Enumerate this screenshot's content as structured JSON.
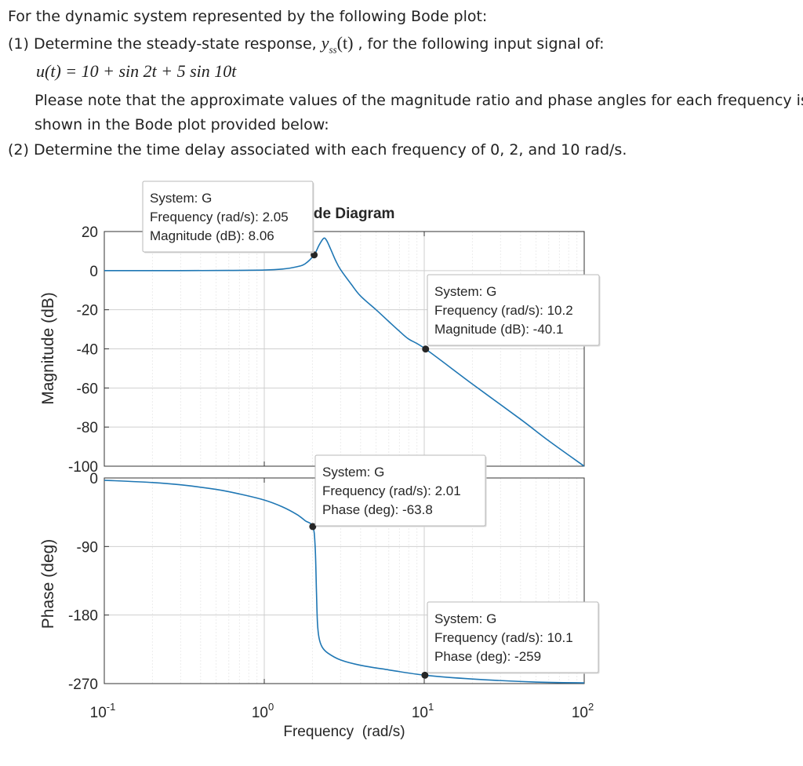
{
  "question": {
    "intro": "For the dynamic system represented by the following Bode plot:",
    "part1_prefix": "(1) Determine the steady-state response,",
    "part1_var": "y",
    "part1_sub": "ss",
    "part1_arg": "(t)",
    "part1_suffix": ", for the following input signal of:",
    "input_signal": "u(t) = 10 + sin 2t + 5 sin 10t",
    "note_line1": "Please note that the approximate values of the magnitude ratio and phase angles for each frequency is",
    "note_line2": "shown in the Bode plot provided below:",
    "part2": "(2) Determine the time delay associated with each frequency of 0, 2, and 10 rad/s."
  },
  "chart_data": {
    "type": "line",
    "title": "Bode Diagram",
    "xlabel": "Frequency  (rad/s)",
    "x_scale": "log",
    "xlim": [
      0.1,
      100
    ],
    "x_ticks": [
      {
        "value": 0.1,
        "base": "10",
        "exp": "-1"
      },
      {
        "value": 1,
        "base": "10",
        "exp": "0"
      },
      {
        "value": 10,
        "base": "10",
        "exp": "1"
      },
      {
        "value": 100,
        "base": "10",
        "exp": "2"
      }
    ],
    "grid": true,
    "color": "#1f77b4",
    "magnitude": {
      "ylabel": "Magnitude (dB)",
      "ylim": [
        -100,
        20
      ],
      "y_ticks": [
        "20",
        "0",
        "-20",
        "-40",
        "-60",
        "-80",
        "-100"
      ],
      "y_tick_values": [
        20,
        0,
        -20,
        -40,
        -60,
        -80,
        -100
      ],
      "curve": {
        "x": [
          0.1,
          0.3,
          0.6,
          1.0,
          1.3,
          1.6,
          1.8,
          2.05,
          2.2,
          2.35,
          2.45,
          2.6,
          2.8,
          3.0,
          3.5,
          4.0,
          5.0,
          6.0,
          7.0,
          8.0,
          10.2,
          20,
          40,
          60,
          100
        ],
        "y": [
          0,
          0,
          0.1,
          0.3,
          0.8,
          2.0,
          3.5,
          8.06,
          13,
          16.5,
          15.5,
          11,
          5,
          0.5,
          -7,
          -13,
          -20,
          -26,
          -31,
          -35,
          -40.1,
          -58,
          -76,
          -87,
          -100
        ]
      },
      "datatips": [
        {
          "system": "System: G",
          "freq_label": "Frequency (rad/s): 2.05",
          "val_label": "Magnitude (dB): 8.06",
          "x": 2.05,
          "y": 8.06
        },
        {
          "system": "System: G",
          "freq_label": "Frequency (rad/s): 10.2",
          "val_label": "Magnitude (dB): -40.1",
          "x": 10.2,
          "y": -40.1
        }
      ]
    },
    "phase": {
      "ylabel": "Phase (deg)",
      "ylim": [
        -270,
        0
      ],
      "y_ticks": [
        "0",
        "-90",
        "-180",
        "-270"
      ],
      "y_tick_values": [
        0,
        -90,
        -180,
        -270
      ],
      "curve": {
        "x": [
          0.1,
          0.2,
          0.3,
          0.5,
          0.7,
          1.0,
          1.3,
          1.6,
          1.8,
          2.01,
          2.08,
          2.12,
          2.15,
          2.2,
          2.3,
          2.5,
          3.0,
          4.0,
          6.0,
          10.1,
          20,
          50,
          100
        ],
        "y": [
          -3,
          -6,
          -9,
          -15,
          -21,
          -29,
          -38,
          -48,
          -56,
          -63.8,
          -90,
          -150,
          -190,
          -210,
          -222,
          -230,
          -239,
          -246,
          -252,
          -259,
          -264,
          -268,
          -269
        ]
      },
      "datatips": [
        {
          "system": "System: G",
          "freq_label": "Frequency (rad/s): 2.01",
          "val_label": "Phase (deg): -63.8",
          "x": 2.01,
          "y": -63.8
        },
        {
          "system": "System: G",
          "freq_label": "Frequency (rad/s): 10.1",
          "val_label": "Phase (deg): -259",
          "x": 10.1,
          "y": -259
        }
      ]
    }
  }
}
